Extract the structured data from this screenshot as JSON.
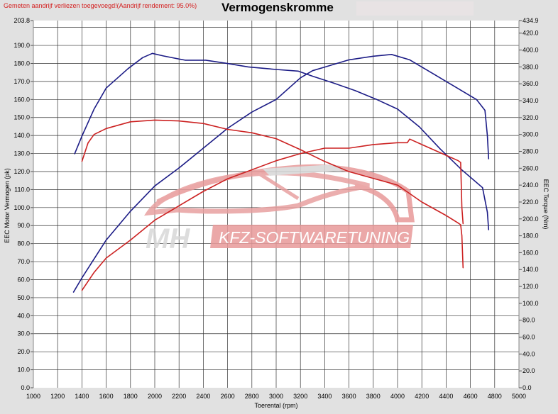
{
  "header": {
    "note": "Gemeten aandrijf verliezen toegevoegd!(Aandrijf rendement: 95.0%)",
    "title": "Vermogenskromme"
  },
  "watermark": {
    "left": "MH",
    "right": "KFZ-SOFTWARETUNING"
  },
  "colors": {
    "power_tuned": "#1c1c86",
    "torque_tuned": "#1c1c86",
    "power_stock": "#cc2222",
    "torque_stock": "#cc2222",
    "background": "#e1e1e1",
    "plot": "#ffffff"
  },
  "chart_data": {
    "type": "line",
    "title": "Vermogenskromme",
    "xlabel": "Toerental (rpm)",
    "ylabel": "EEC Motor Vermogen (pk)",
    "y2label": "EEC Torque (Nm)",
    "xlim": [
      1000,
      5000
    ],
    "ylim": [
      0,
      203.8
    ],
    "y2lim": [
      0,
      434.9
    ],
    "grid": true,
    "xticks": [
      "1000",
      "1200",
      "1400",
      "1600",
      "1800",
      "2000",
      "2200",
      "2400",
      "2600",
      "2800",
      "3000",
      "3200",
      "3400",
      "3600",
      "3800",
      "4000",
      "4200",
      "4400",
      "4600",
      "4800",
      "5000"
    ],
    "yticks": [
      "0.0",
      "10.0",
      "20.0",
      "30.0",
      "40.0",
      "50.0",
      "60.0",
      "70.0",
      "80.0",
      "90.0",
      "100.0",
      "110.0",
      "120.0",
      "130.0",
      "140.0",
      "150.0",
      "160.0",
      "170.0",
      "180.0",
      "190.0",
      "203.8"
    ],
    "y2ticks": [
      "0.0",
      "20.0",
      "40.0",
      "60.0",
      "80.0",
      "100.0",
      "120.0",
      "140.0",
      "160.0",
      "180.0",
      "200.0",
      "220.0",
      "240.0",
      "260.0",
      "280.0",
      "300.0",
      "320.0",
      "340.0",
      "360.0",
      "380.0",
      "400.0",
      "420.0",
      "434.9"
    ],
    "series": [
      {
        "axis": "y2",
        "color": "#1c1c86",
        "x": [
          1340,
          1400,
          1500,
          1600,
          1780,
          1900,
          1980,
          2070,
          2250,
          2420,
          2600,
          2770,
          3000,
          3180,
          3300,
          3470,
          3650,
          3820,
          4000,
          4180,
          4350,
          4530,
          4700,
          4740,
          4750
        ],
        "y": [
          277,
          298,
          330,
          355,
          378,
          391,
          396,
          393,
          388,
          388,
          384,
          380,
          377,
          375,
          369,
          361,
          352,
          342,
          330,
          309,
          283,
          258,
          237,
          208,
          187
        ]
      },
      {
        "axis": "y",
        "color": "#1c1c86",
        "x": [
          1330,
          1400,
          1600,
          1800,
          2000,
          2200,
          2400,
          2600,
          2800,
          3000,
          3200,
          3300,
          3400,
          3600,
          3800,
          3950,
          4100,
          4300,
          4500,
          4650,
          4720,
          4740,
          4750
        ],
        "y": [
          53,
          61,
          82,
          98,
          112,
          122,
          133,
          144,
          153,
          160,
          172,
          176,
          178,
          182,
          184,
          185,
          182,
          174,
          166,
          160,
          154,
          140,
          127
        ]
      },
      {
        "axis": "y2",
        "color": "#cc2222",
        "x": [
          1400,
          1450,
          1500,
          1600,
          1800,
          2000,
          2200,
          2400,
          2600,
          2800,
          3000,
          3200,
          3400,
          3600,
          3800,
          4000,
          4200,
          4400,
          4500,
          4520,
          4530,
          4540
        ],
        "y": [
          268,
          290,
          300,
          307,
          315,
          317,
          316,
          313,
          306,
          302,
          295,
          282,
          268,
          256,
          248,
          240,
          220,
          204,
          195,
          193,
          180,
          142
        ]
      },
      {
        "axis": "y",
        "color": "#cc2222",
        "x": [
          1400,
          1500,
          1600,
          1800,
          2000,
          2200,
          2400,
          2600,
          2800,
          3000,
          3200,
          3400,
          3600,
          3800,
          4000,
          4080,
          4100,
          4200,
          4400,
          4500,
          4520,
          4530,
          4540
        ],
        "y": [
          54,
          64,
          72,
          82,
          93,
          101,
          109,
          116,
          121,
          126,
          130,
          133,
          133,
          135,
          136,
          136,
          138,
          135,
          129,
          126,
          125,
          100,
          91
        ]
      }
    ]
  }
}
